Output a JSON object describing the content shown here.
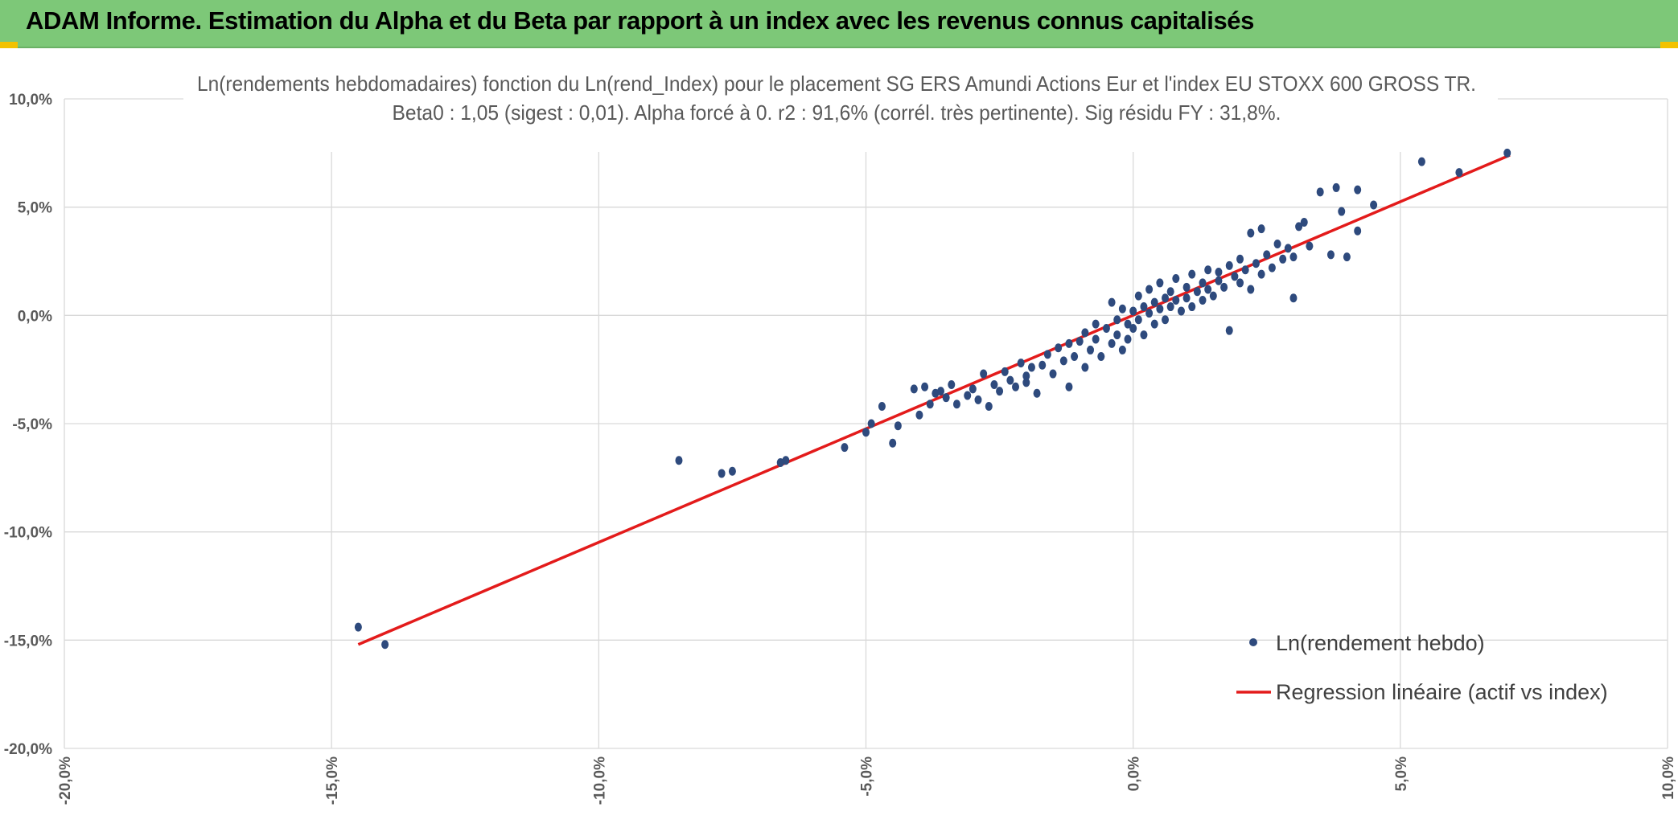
{
  "banner": {
    "title": "ADAM Informe. Estimation du Alpha et du Beta par rapport à un index avec les revenus connus capitalisés"
  },
  "colors": {
    "banner_bg": "#7dc878",
    "corner_accent": "#f2c200",
    "scatter": "#2e4a7d",
    "regression": "#e31b1b",
    "grid": "#d9d9d9",
    "axis_text": "#595959"
  },
  "chart_data": {
    "type": "scatter",
    "title_line1": "Ln(rendements hebdomadaires) fonction du Ln(rend_Index) pour le placement SG ERS Amundi Actions Eur et l'index EU STOXX 600 GROSS TR.",
    "title_line2": "Beta0 : 1,05 (sigest : 0,01). Alpha forcé à 0. r2 : 91,6% (corrél. très pertinente). Sig résidu FY : 31,8%.",
    "xlim": [
      -0.2,
      0.1
    ],
    "ylim": [
      -0.2,
      0.1
    ],
    "x_ticks": [
      -0.2,
      -0.15,
      -0.1,
      -0.05,
      0.0,
      0.05,
      0.1
    ],
    "x_tick_labels": [
      "-20,0%",
      "-15,0%",
      "-10,0%",
      "-5,0%",
      "0,0%",
      "5,0%",
      "10,0%"
    ],
    "y_ticks": [
      0.1,
      0.05,
      0.0,
      -0.05,
      -0.1,
      -0.15,
      -0.2
    ],
    "y_tick_labels": [
      "10,0%",
      "5,0%",
      "0,0%",
      "-5,0%",
      "-10,0%",
      "-15,0%",
      "-20,0%"
    ],
    "grid": true,
    "legend_position": "bottom-right",
    "series": [
      {
        "name": "Ln(rendement hebdo)",
        "kind": "scatter",
        "color": "#2e4a7d",
        "points": [
          [
            -0.145,
            -0.144
          ],
          [
            -0.14,
            -0.152
          ],
          [
            -0.085,
            -0.067
          ],
          [
            -0.077,
            -0.073
          ],
          [
            -0.075,
            -0.072
          ],
          [
            -0.066,
            -0.068
          ],
          [
            -0.065,
            -0.067
          ],
          [
            -0.054,
            -0.061
          ],
          [
            -0.05,
            -0.054
          ],
          [
            -0.049,
            -0.05
          ],
          [
            -0.047,
            -0.042
          ],
          [
            -0.045,
            -0.059
          ],
          [
            -0.044,
            -0.051
          ],
          [
            -0.041,
            -0.034
          ],
          [
            -0.04,
            -0.046
          ],
          [
            -0.039,
            -0.033
          ],
          [
            -0.038,
            -0.041
          ],
          [
            -0.037,
            -0.036
          ],
          [
            -0.036,
            -0.035
          ],
          [
            -0.035,
            -0.038
          ],
          [
            -0.034,
            -0.032
          ],
          [
            -0.033,
            -0.041
          ],
          [
            -0.031,
            -0.037
          ],
          [
            -0.03,
            -0.034
          ],
          [
            -0.029,
            -0.039
          ],
          [
            -0.028,
            -0.027
          ],
          [
            -0.027,
            -0.042
          ],
          [
            -0.026,
            -0.032
          ],
          [
            -0.025,
            -0.035
          ],
          [
            -0.024,
            -0.026
          ],
          [
            -0.023,
            -0.03
          ],
          [
            -0.022,
            -0.033
          ],
          [
            -0.021,
            -0.022
          ],
          [
            -0.02,
            -0.028
          ],
          [
            -0.02,
            -0.031
          ],
          [
            -0.019,
            -0.024
          ],
          [
            -0.018,
            -0.036
          ],
          [
            -0.017,
            -0.023
          ],
          [
            -0.016,
            -0.018
          ],
          [
            -0.015,
            -0.027
          ],
          [
            -0.014,
            -0.015
          ],
          [
            -0.013,
            -0.021
          ],
          [
            -0.012,
            -0.013
          ],
          [
            -0.012,
            -0.033
          ],
          [
            -0.011,
            -0.019
          ],
          [
            -0.01,
            -0.012
          ],
          [
            -0.009,
            -0.008
          ],
          [
            -0.009,
            -0.024
          ],
          [
            -0.008,
            -0.016
          ],
          [
            -0.007,
            -0.004
          ],
          [
            -0.007,
            -0.011
          ],
          [
            -0.006,
            -0.019
          ],
          [
            -0.005,
            -0.006
          ],
          [
            -0.004,
            -0.013
          ],
          [
            -0.004,
            0.006
          ],
          [
            -0.003,
            -0.002
          ],
          [
            -0.003,
            -0.009
          ],
          [
            -0.002,
            -0.016
          ],
          [
            -0.002,
            0.003
          ],
          [
            -0.001,
            -0.004
          ],
          [
            -0.001,
            -0.011
          ],
          [
            0.0,
            0.002
          ],
          [
            0.0,
            -0.006
          ],
          [
            0.001,
            0.009
          ],
          [
            0.001,
            -0.002
          ],
          [
            0.002,
            0.004
          ],
          [
            0.002,
            -0.009
          ],
          [
            0.003,
            0.012
          ],
          [
            0.003,
            0.001
          ],
          [
            0.004,
            0.006
          ],
          [
            0.004,
            -0.004
          ],
          [
            0.005,
            0.015
          ],
          [
            0.005,
            0.003
          ],
          [
            0.006,
            0.008
          ],
          [
            0.006,
            -0.002
          ],
          [
            0.007,
            0.011
          ],
          [
            0.007,
            0.004
          ],
          [
            0.008,
            0.017
          ],
          [
            0.008,
            0.007
          ],
          [
            0.009,
            0.002
          ],
          [
            0.01,
            0.013
          ],
          [
            0.01,
            0.008
          ],
          [
            0.011,
            0.019
          ],
          [
            0.011,
            0.004
          ],
          [
            0.012,
            0.011
          ],
          [
            0.013,
            0.015
          ],
          [
            0.013,
            0.007
          ],
          [
            0.014,
            0.021
          ],
          [
            0.014,
            0.012
          ],
          [
            0.015,
            0.009
          ],
          [
            0.016,
            0.016
          ],
          [
            0.016,
            0.02
          ],
          [
            0.017,
            0.013
          ],
          [
            0.018,
            0.023
          ],
          [
            0.018,
            -0.007
          ],
          [
            0.019,
            0.018
          ],
          [
            0.02,
            0.015
          ],
          [
            0.02,
            0.026
          ],
          [
            0.021,
            0.021
          ],
          [
            0.022,
            0.012
          ],
          [
            0.022,
            0.038
          ],
          [
            0.023,
            0.024
          ],
          [
            0.024,
            0.019
          ],
          [
            0.024,
            0.04
          ],
          [
            0.025,
            0.028
          ],
          [
            0.026,
            0.022
          ],
          [
            0.027,
            0.033
          ],
          [
            0.028,
            0.026
          ],
          [
            0.029,
            0.031
          ],
          [
            0.03,
            0.027
          ],
          [
            0.031,
            0.041
          ],
          [
            0.032,
            0.043
          ],
          [
            0.033,
            0.032
          ],
          [
            0.035,
            0.057
          ],
          [
            0.037,
            0.028
          ],
          [
            0.038,
            0.059
          ],
          [
            0.039,
            0.048
          ],
          [
            0.04,
            0.027
          ],
          [
            0.042,
            0.058
          ],
          [
            0.042,
            0.039
          ],
          [
            0.045,
            0.051
          ],
          [
            0.054,
            0.071
          ],
          [
            0.061,
            0.066
          ],
          [
            0.07,
            0.075
          ],
          [
            0.03,
            0.008
          ]
        ]
      },
      {
        "name": "Regression linéaire (actif vs index)",
        "kind": "line",
        "color": "#e31b1b",
        "points": [
          [
            -0.145,
            -0.152
          ],
          [
            0.0705,
            0.074
          ]
        ]
      }
    ]
  }
}
